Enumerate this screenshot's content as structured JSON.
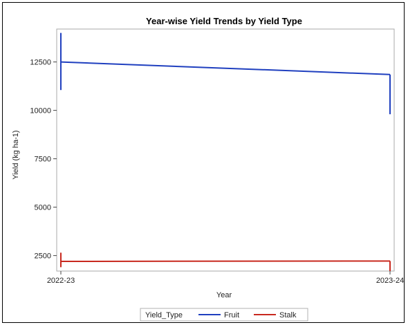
{
  "chart_data": {
    "type": "line",
    "title": "Year-wise Yield Trends by Yield Type",
    "xlabel": "Year",
    "ylabel": "Yield (kg ha-1)",
    "categories": [
      "2022-23",
      "2023-24"
    ],
    "ylim": [
      1700,
      14200
    ],
    "yticks": [
      2500,
      5000,
      7500,
      10000,
      12500
    ],
    "ytick_labels": [
      "2500",
      "5000",
      "7500",
      "10000",
      "12500"
    ],
    "grid": false,
    "legend": {
      "placement": "bottom",
      "title": "Yield_Type"
    },
    "series": [
      {
        "name": "Fruit",
        "color": "#1f3fbf",
        "values": [
          12500,
          11850
        ],
        "ranges": [
          [
            11050,
            14000
          ],
          [
            9800,
            11850
          ]
        ]
      },
      {
        "name": "Stalk",
        "color": "#c8281e",
        "values": [
          2200,
          2220
        ],
        "ranges": [
          [
            1900,
            2650
          ],
          [
            1700,
            2220
          ]
        ]
      }
    ]
  }
}
